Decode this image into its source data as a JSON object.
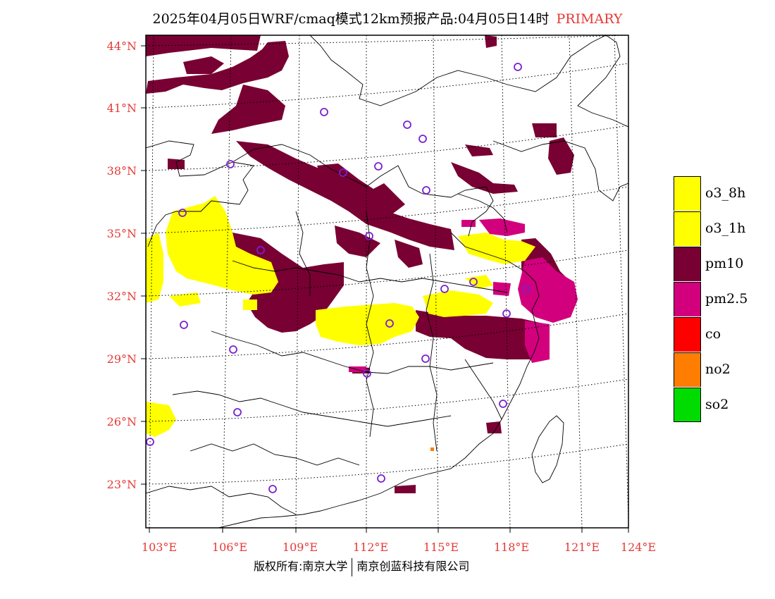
{
  "title": {
    "main": "2025年04月05日WRF/cmaq模式12km预报产品:04月05日14时",
    "tag": "PRIMARY"
  },
  "colors": {
    "o3_8h": "#ffff00",
    "o3_1h": "#ffff00",
    "pm10": "#780032",
    "pm2_5": "#d2007d",
    "co": "#ff0000",
    "no2": "#ff7d00",
    "so2": "#00dc00",
    "station": "#7b1fd0",
    "label": "#e53935"
  },
  "lat_labels": [
    "44°N",
    "41°N",
    "38°N",
    "35°N",
    "32°N",
    "29°N",
    "26°N",
    "23°N"
  ],
  "lon_labels": [
    "103°E",
    "106°E",
    "109°E",
    "112°E",
    "115°E",
    "118°E",
    "121°E",
    "124°E"
  ],
  "legend": [
    {
      "label": "o3_8h",
      "color": "#ffff00"
    },
    {
      "label": "o3_1h",
      "color": "#ffff00"
    },
    {
      "label": "pm10",
      "color": "#780032"
    },
    {
      "label": "pm2.5",
      "color": "#d2007d"
    },
    {
      "label": "co",
      "color": "#ff0000"
    },
    {
      "label": "no2",
      "color": "#ff7d00"
    },
    {
      "label": "so2",
      "color": "#00dc00"
    }
  ],
  "copyright": {
    "left": "版权所有:南京大学",
    "right": "南京创蓝科技有限公司"
  }
}
